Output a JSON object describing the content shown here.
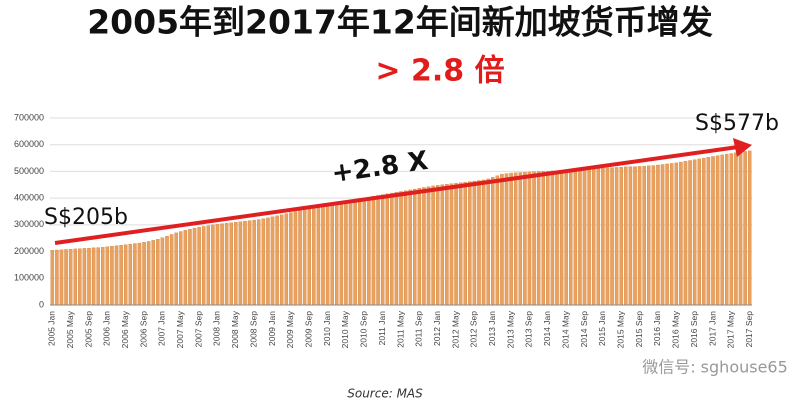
{
  "chart_data": {
    "type": "bar",
    "title": "2005年到2017年12年间新加坡货币增发",
    "subtitle": "> 2.8 倍",
    "annotations": {
      "start": "S$205b",
      "end": "S$577b",
      "growth": "+2.8 X"
    },
    "source": "Source: MAS",
    "watermark": "微信号: sghouse65",
    "color": "#e9a15f",
    "grid": true,
    "ylim": [
      0,
      700000
    ],
    "yticks": [
      0,
      100000,
      200000,
      300000,
      400000,
      500000,
      600000,
      700000
    ],
    "categories": [
      "2005 Jan",
      null,
      null,
      null,
      "2005 May",
      null,
      null,
      null,
      "2005 Sep",
      null,
      null,
      null,
      "2006 Jan",
      null,
      null,
      null,
      "2006 May",
      null,
      null,
      null,
      "2006 Sep",
      null,
      null,
      null,
      "2007 Jan",
      null,
      null,
      null,
      "2007 May",
      null,
      null,
      null,
      "2007 Sep",
      null,
      null,
      null,
      "2008 Jan",
      null,
      null,
      null,
      "2008 May",
      null,
      null,
      null,
      "2008 Sep",
      null,
      null,
      null,
      "2009 Jan",
      null,
      null,
      null,
      "2009 May",
      null,
      null,
      null,
      "2009 Sep",
      null,
      null,
      null,
      "2010 Jan",
      null,
      null,
      null,
      "2010 May",
      null,
      null,
      null,
      "2010 Sep",
      null,
      null,
      null,
      "2011 Jan",
      null,
      null,
      null,
      "2011 May",
      null,
      null,
      null,
      "2011 Sep",
      null,
      null,
      null,
      "2012 Jan",
      null,
      null,
      null,
      "2012 May",
      null,
      null,
      null,
      "2012 Sep",
      null,
      null,
      null,
      "2013 Jan",
      null,
      null,
      null,
      "2013 May",
      null,
      null,
      null,
      "2013 Sep",
      null,
      null,
      null,
      "2014 Jan",
      null,
      null,
      null,
      "2014 May",
      null,
      null,
      null,
      "2014 Sep",
      null,
      null,
      null,
      "2015 Jan",
      null,
      null,
      null,
      "2015 May",
      null,
      null,
      null,
      "2015 Sep",
      null,
      null,
      null,
      "2016 Jan",
      null,
      null,
      null,
      "2016 May",
      null,
      null,
      null,
      "2016 Sep",
      null,
      null,
      null,
      "2017 Jan",
      null,
      null,
      null,
      "2017 May",
      null,
      null,
      null,
      "2017 Sep"
    ],
    "values": [
      205000,
      206000,
      207000,
      208000,
      209000,
      210000,
      211000,
      212000,
      213000,
      214000,
      215000,
      216000,
      218000,
      220000,
      222000,
      224000,
      226000,
      228000,
      230000,
      232000,
      235000,
      238000,
      242000,
      246000,
      252000,
      258000,
      264000,
      270000,
      275000,
      280000,
      284000,
      288000,
      291000,
      294000,
      297000,
      300000,
      302000,
      304000,
      306000,
      308000,
      310000,
      312000,
      314000,
      316000,
      318000,
      320000,
      323000,
      326000,
      330000,
      334000,
      338000,
      342000,
      346000,
      350000,
      354000,
      358000,
      362000,
      366000,
      370000,
      374000,
      377000,
      380000,
      383000,
      386000,
      389000,
      392000,
      395000,
      398000,
      401000,
      404000,
      407000,
      410000,
      413000,
      416000,
      419000,
      422000,
      425000,
      428000,
      431000,
      434000,
      437000,
      440000,
      443000,
      446000,
      448000,
      450000,
      452000,
      454000,
      456000,
      458000,
      460000,
      462000,
      464000,
      466000,
      468000,
      472000,
      478000,
      484000,
      490000,
      492000,
      494000,
      495000,
      496000,
      497000,
      498000,
      499000,
      500000,
      501000,
      501000,
      502000,
      503000,
      504000,
      505000,
      506000,
      507000,
      508000,
      509000,
      510000,
      510000,
      511000,
      512000,
      513000,
      514000,
      515000,
      516000,
      517000,
      518000,
      518000,
      519000,
      520000,
      521000,
      522000,
      524000,
      526000,
      528000,
      530000,
      532000,
      535000,
      538000,
      541000,
      544000,
      547000,
      550000,
      553000,
      556000,
      559000,
      562000,
      565000,
      567000,
      570000,
      573000,
      575000,
      577000
    ]
  }
}
